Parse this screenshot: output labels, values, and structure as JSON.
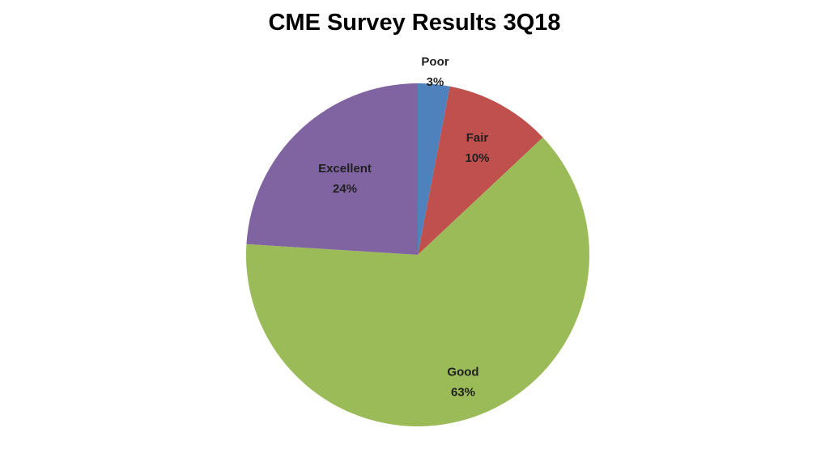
{
  "chart_data": {
    "type": "pie",
    "title": "CME Survey Results 3Q18",
    "slices": [
      {
        "label": "Poor",
        "value": 3,
        "value_label": "3%",
        "color": "#4F81BD"
      },
      {
        "label": "Fair",
        "value": 10,
        "value_label": "10%",
        "color": "#C0504D"
      },
      {
        "label": "Good",
        "value": 63,
        "value_label": "63%",
        "color": "#9BBB59"
      },
      {
        "label": "Excellent",
        "value": 24,
        "value_label": "24%",
        "color": "#8064A2"
      }
    ],
    "start_angle": "12 o'clock",
    "direction": "clockwise",
    "legend": "none",
    "data_labels": "category and percentage"
  }
}
